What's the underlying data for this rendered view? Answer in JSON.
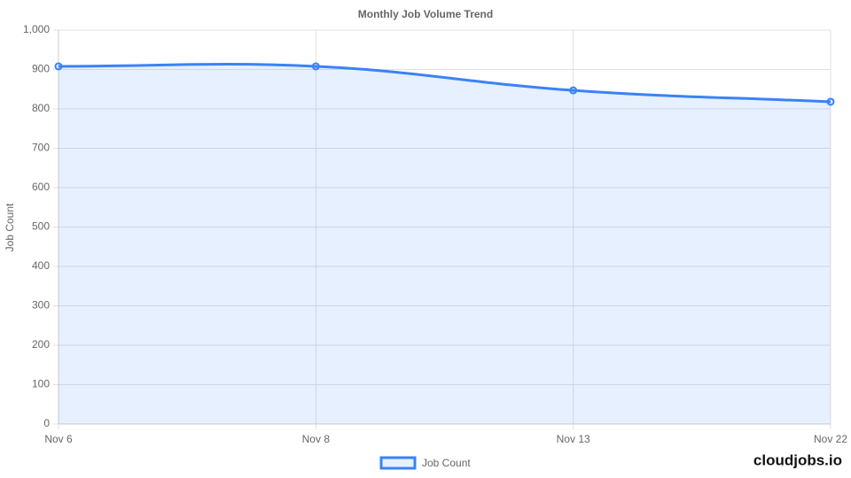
{
  "chart_data": {
    "type": "line",
    "title": "Monthly Job Volume Trend",
    "y_label": "Job Count",
    "categories": [
      "Nov 6",
      "Nov 8",
      "Nov 13",
      "Nov 22"
    ],
    "series": [
      {
        "name": "Job Count",
        "color": "#3b82f6",
        "fill": "rgba(59,130,246,0.12)",
        "values": [
          908,
          908,
          847,
          818
        ]
      }
    ],
    "ylim": [
      0,
      1000
    ],
    "yticks": [
      0,
      100,
      200,
      300,
      400,
      500,
      600,
      700,
      800,
      900,
      {
        "value": 1000,
        "label": "1,000"
      }
    ],
    "grid": true,
    "legend": "bottom",
    "area": true
  },
  "watermark": "cloudjobs.io"
}
